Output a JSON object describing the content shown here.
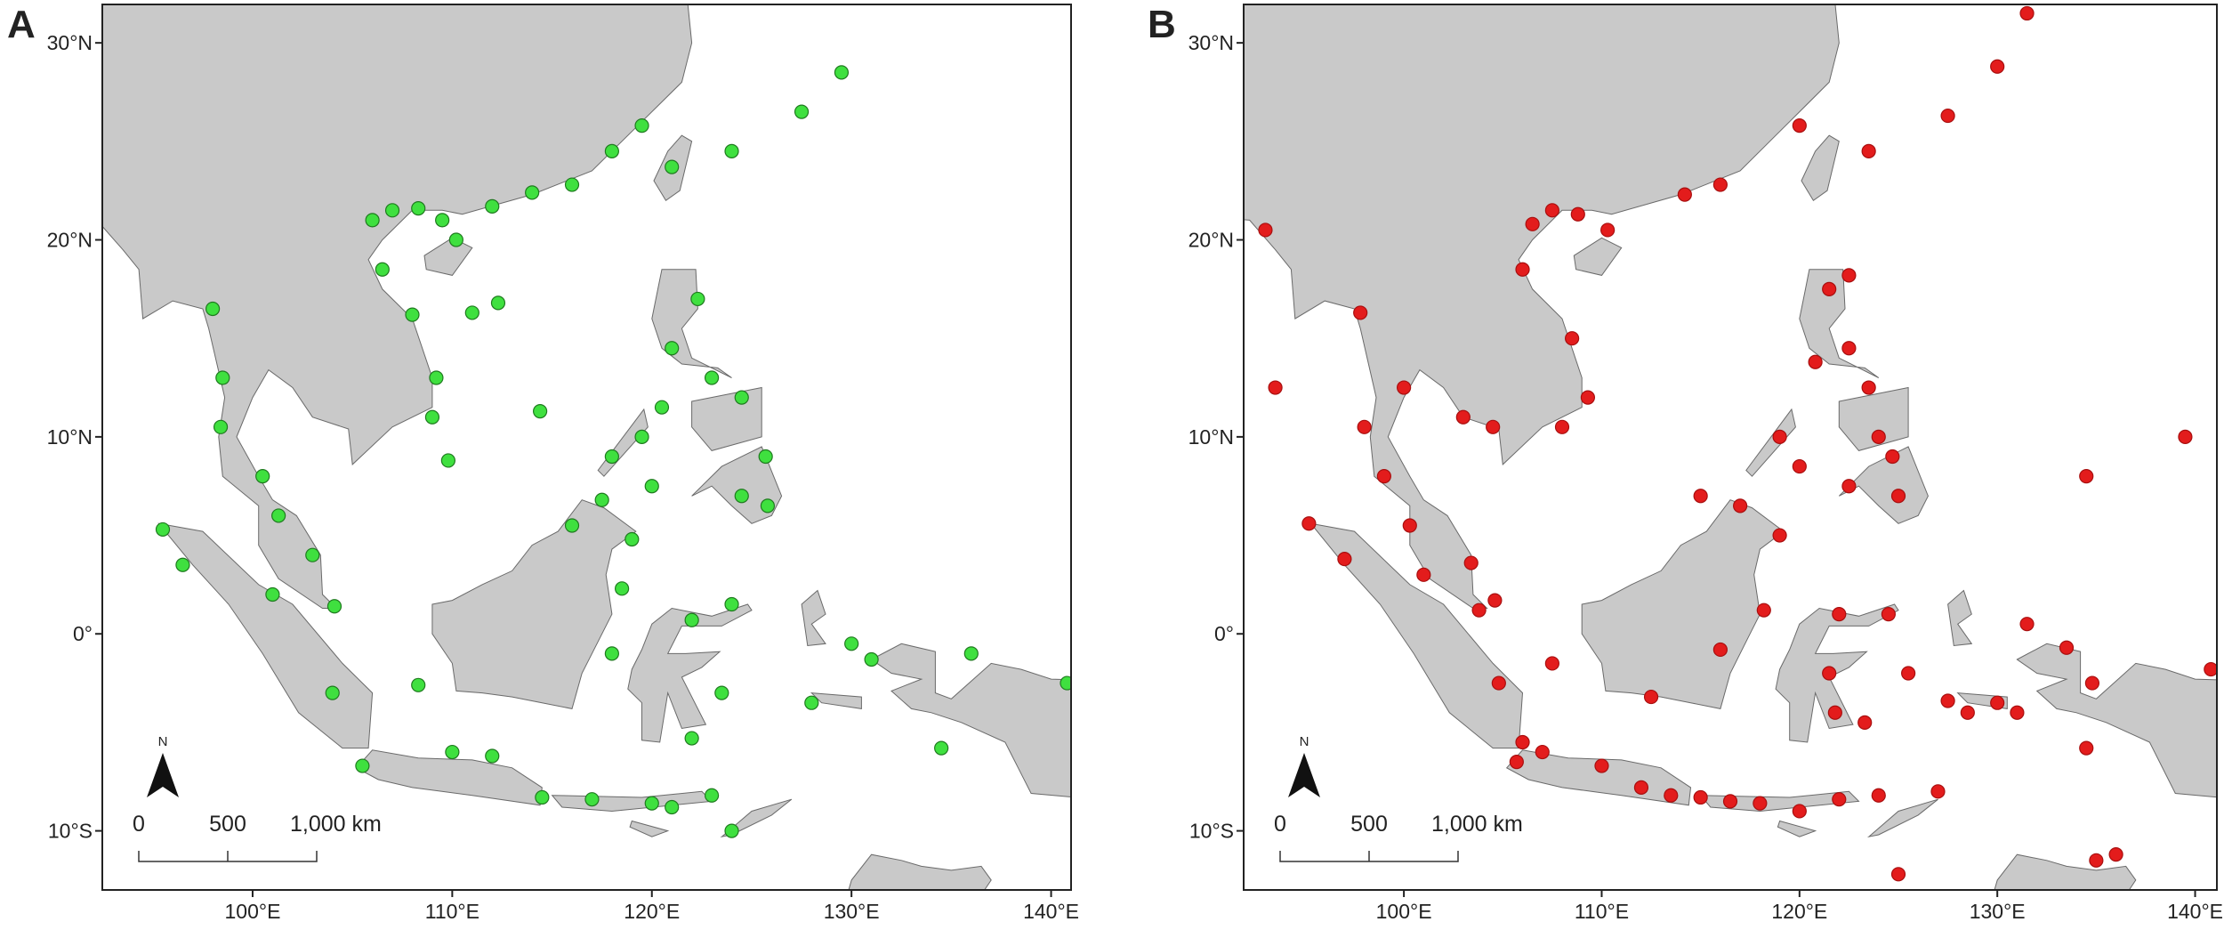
{
  "panels": [
    {
      "label": "A",
      "color": "#3fe03f",
      "stroke": "#1f7a1f",
      "lonlim": [
        92.47,
        141.0
      ],
      "latlim": [
        -13.0,
        31.95
      ],
      "lonticks": [
        {
          "value": 100,
          "label": "100°E"
        },
        {
          "value": 110,
          "label": "110°E"
        },
        {
          "value": 120,
          "label": "120°E"
        },
        {
          "value": 130,
          "label": "130°E"
        },
        {
          "value": 140,
          "label": "140°E"
        }
      ],
      "latticks": [
        {
          "value": 30,
          "label": "30°N"
        },
        {
          "value": 20,
          "label": "20°N"
        },
        {
          "value": 10,
          "label": "10°N"
        },
        {
          "value": 0,
          "label": "0°"
        },
        {
          "value": -10,
          "label": "10°S"
        }
      ],
      "north": "N",
      "scale_labels": [
        "0",
        "500",
        "1,000 km"
      ],
      "points": {
        "lon": [
          106,
          107,
          108.3,
          109.5,
          110.2,
          112,
          114,
          116,
          118,
          119.5,
          121,
          124,
          127.5,
          129.5,
          106.5,
          108,
          109.2,
          109,
          98,
          98.5,
          98.4,
          100.5,
          101.3,
          103,
          104.1,
          96.5,
          95.5,
          101,
          105.5,
          110,
          114.5,
          117,
          120,
          123,
          116,
          117.5,
          119,
          118.5,
          118,
          120.5,
          121,
          123,
          122.3,
          124.5,
          125.7,
          125.8,
          124.5,
          120,
          119.5,
          118,
          123.5,
          122,
          121,
          124,
          128,
          130,
          131,
          134.5,
          136,
          140.8,
          104,
          108.3,
          114.4,
          111,
          112.3,
          109.8,
          112,
          124,
          122
        ],
        "lat": [
          21,
          21.5,
          21.6,
          21,
          20,
          21.7,
          22.4,
          22.8,
          24.5,
          25.8,
          23.7,
          24.5,
          26.5,
          28.5,
          18.5,
          16.2,
          13,
          11,
          16.5,
          13,
          10.5,
          8,
          6,
          4,
          1.4,
          3.5,
          5.3,
          2,
          -6.7,
          -6,
          -8.3,
          -8.4,
          -8.6,
          -8.2,
          5.5,
          6.8,
          4.8,
          2.3,
          -1,
          11.5,
          14.5,
          13,
          17,
          12,
          9,
          6.5,
          7,
          7.5,
          10,
          9,
          -3,
          -5.3,
          -8.8,
          -10,
          -3.5,
          -0.5,
          -1.3,
          -5.8,
          -1,
          -2.5,
          -3,
          -2.6,
          11.3,
          16.3,
          16.8,
          8.8,
          -6.2,
          1.5,
          0.7
        ]
      }
    },
    {
      "label": "B",
      "color": "#e31c1c",
      "stroke": "#a80f0f",
      "lonlim": [
        91.9,
        141.1
      ],
      "latlim": [
        -13.0,
        31.95
      ],
      "lonticks": [
        {
          "value": 100,
          "label": "100°E"
        },
        {
          "value": 110,
          "label": "110°E"
        },
        {
          "value": 120,
          "label": "120°E"
        },
        {
          "value": 130,
          "label": "130°E"
        },
        {
          "value": 140,
          "label": "140°E"
        }
      ],
      "latticks": [
        {
          "value": 30,
          "label": "30°N"
        },
        {
          "value": 20,
          "label": "20°N"
        },
        {
          "value": 10,
          "label": "10°N"
        },
        {
          "value": 0,
          "label": "0°"
        },
        {
          "value": -10,
          "label": "10°S"
        }
      ],
      "north": "N",
      "scale_labels": [
        "0",
        "500",
        "1,000 km"
      ],
      "points": {
        "lon": [
          93,
          93.5,
          97.8,
          98,
          99,
          100.3,
          101,
          103.4,
          103.8,
          104.8,
          106,
          105.7,
          107,
          110,
          112,
          113.5,
          115,
          116.5,
          118,
          120,
          122,
          124,
          127,
          106.5,
          107.5,
          108.8,
          110.3,
          114.2,
          116,
          120,
          123.5,
          127.5,
          130,
          131.5,
          106,
          108.5,
          109.3,
          108,
          103,
          104.5,
          100,
          115,
          117,
          119,
          118.2,
          120.8,
          121.5,
          122.5,
          122.5,
          123.5,
          124,
          124.7,
          125,
          122.5,
          119,
          120,
          122,
          124.5,
          121.5,
          121.8,
          123.3,
          125.5,
          127.5,
          128.5,
          130,
          131,
          134.5,
          134.8,
          134.5,
          139.5,
          140.8,
          135,
          136,
          125,
          116,
          112.5,
          107.5,
          104.6,
          97,
          95.2,
          131.5,
          133.5
        ],
        "lat": [
          20.5,
          12.5,
          16.3,
          10.5,
          8,
          5.5,
          3,
          3.6,
          1.2,
          -2.5,
          -5.5,
          -6.5,
          -6,
          -6.7,
          -7.8,
          -8.2,
          -8.3,
          -8.5,
          -8.6,
          -9,
          -8.4,
          -8.2,
          -8,
          20.8,
          21.5,
          21.3,
          20.5,
          22.3,
          22.8,
          25.8,
          24.5,
          26.3,
          28.8,
          31.5,
          18.5,
          15,
          12,
          10.5,
          11,
          10.5,
          12.5,
          7,
          6.5,
          5,
          1.2,
          13.8,
          17.5,
          18.2,
          14.5,
          12.5,
          10,
          9,
          7,
          7.5,
          10,
          8.5,
          1,
          1,
          -2,
          -4,
          -4.5,
          -2,
          -3.4,
          -4,
          -3.5,
          -4,
          -5.8,
          -2.5,
          8,
          10,
          -1.8,
          -11.5,
          -11.2,
          -12.2,
          -0.8,
          -3.2,
          -1.5,
          1.7,
          3.8,
          5.6,
          0.5,
          -0.7
        ]
      }
    }
  ]
}
